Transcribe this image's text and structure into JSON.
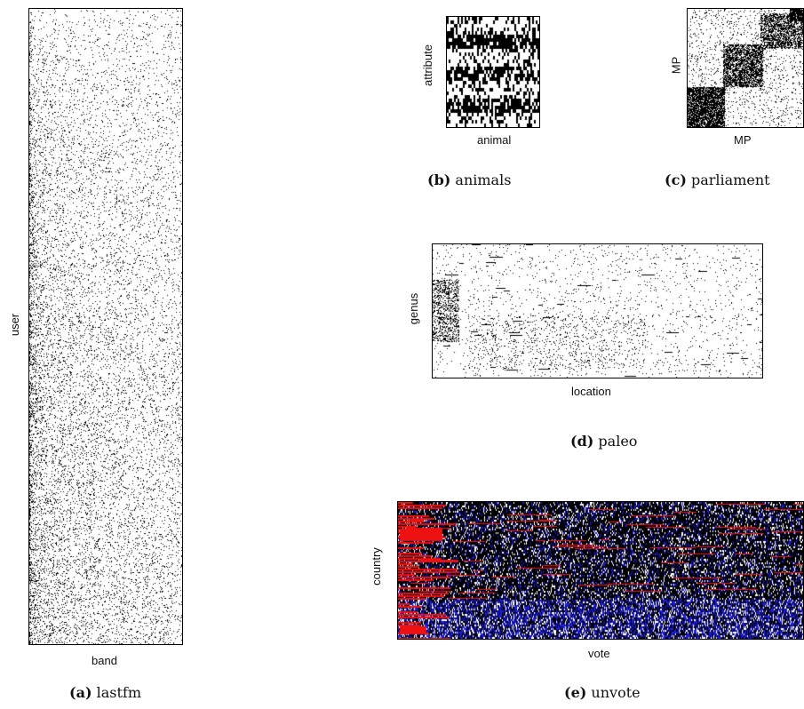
{
  "panels": {
    "lastfm": {
      "xlabel": "band",
      "ylabel": "user",
      "caption_tag": "(a)",
      "caption_name": "lastfm"
    },
    "animals": {
      "xlabel": "animal",
      "ylabel": "attribute",
      "caption_tag": "(b)",
      "caption_name": "animals"
    },
    "parliament": {
      "xlabel": "MP",
      "ylabel": "MP",
      "caption_tag": "(c)",
      "caption_name": "parliament"
    },
    "paleo": {
      "xlabel": "location",
      "ylabel": "genus",
      "caption_tag": "(d)",
      "caption_name": "paleo"
    },
    "unvote": {
      "xlabel": "vote",
      "ylabel": "country",
      "caption_tag": "(e)",
      "caption_name": "unvote"
    }
  },
  "colors": {
    "on": "#000000",
    "off": "#ffffff",
    "red": "#ee1111",
    "blue": "#1a1aee"
  }
}
